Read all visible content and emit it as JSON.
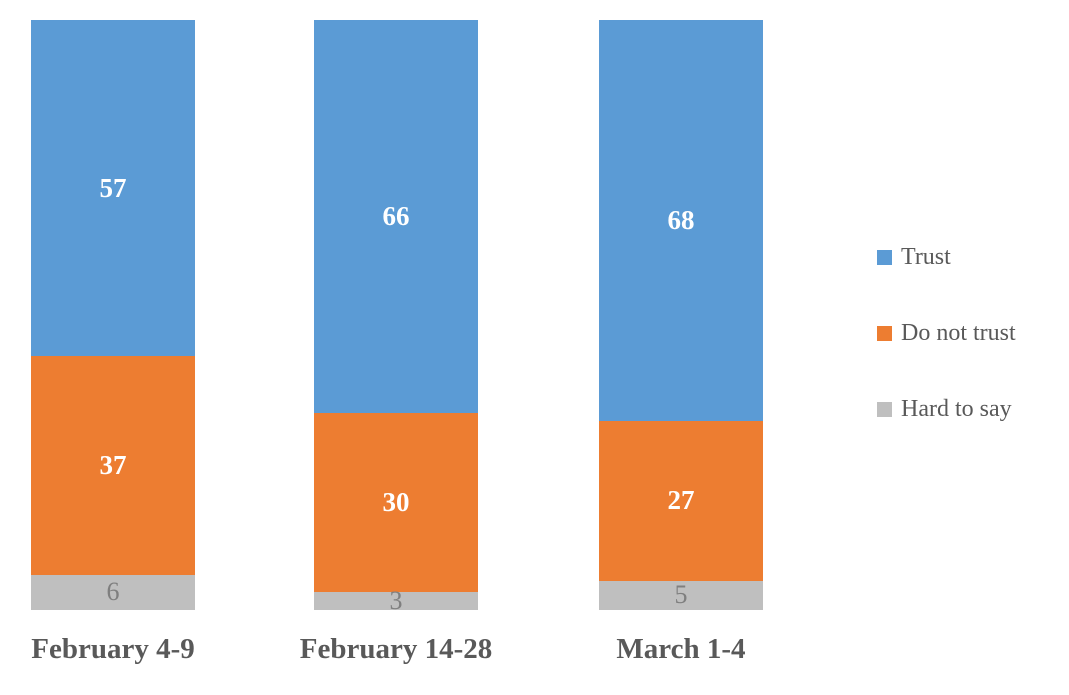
{
  "chart_data": {
    "type": "bar",
    "variant": "stacked-column-100",
    "title": "",
    "xlabel": "",
    "ylabel": "",
    "axes_visible": false,
    "grid": false,
    "value_labels": true,
    "background_color": "#FFFFFF",
    "category_label_color": "#595959",
    "legend_text_color": "#595959",
    "legend_position": "right",
    "categories": [
      "February 4-9",
      "February 14-28",
      "March 1-4"
    ],
    "series": [
      {
        "name": "Trust",
        "color": "#5B9BD5",
        "label_color": "#FFFFFF",
        "label_bold": true,
        "values": [
          57,
          66,
          68
        ]
      },
      {
        "name": "Do not trust",
        "color": "#ED7D31",
        "label_color": "#FFFFFF",
        "label_bold": true,
        "values": [
          37,
          30,
          27
        ]
      },
      {
        "name": "Hard to say",
        "color": "#BFBFBF",
        "label_color": "#7F7F7F",
        "label_bold": false,
        "values": [
          6,
          3,
          5
        ]
      }
    ],
    "legend_entries": [
      "Trust",
      "Do not trust",
      "Hard to say"
    ]
  }
}
